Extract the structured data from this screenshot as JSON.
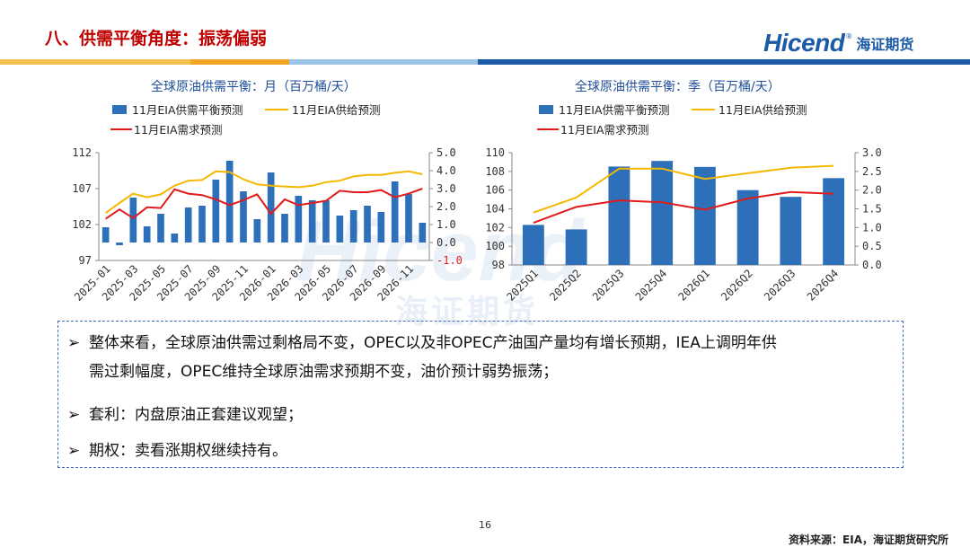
{
  "slide": {
    "title": "八、供需平衡角度：振荡偏弱",
    "logo_en": "Hicend",
    "logo_reg": "®",
    "logo_cn": "海证期货",
    "watermark_en": "Hicend",
    "watermark_cn": "海证期货",
    "page_number": "16",
    "source": "资料来源：EIA，海证期货研究所",
    "colors": {
      "bar": "#2e6fba",
      "supply_line": "#f5b800",
      "demand_line": "#e11b1b",
      "title": "#c00000",
      "accent_blue": "#1b5aa6"
    }
  },
  "bullets": [
    {
      "marker": "➢",
      "text_line1": "整体来看，全球原油供需过剩格局不变，OPEC以及非OPEC产油国产量均有增长预期，IEA上调明年供",
      "text_line2": "需过剩幅度，OPEC维持全球原油需求预期不变，油价预计弱势振荡；"
    },
    {
      "marker": "➢",
      "text_line1": "套利：内盘原油正套建议观望；"
    },
    {
      "marker": "➢",
      "text_line1": "期权：卖看涨期权继续持有。"
    }
  ],
  "chart_data": [
    {
      "type": "bar",
      "title": "全球原油供需平衡：月（百万桶/天）",
      "legend": {
        "bar": "11月EIA供需平衡预测",
        "line1": "11月EIA供给预测",
        "line2": "11月EIA需求预测",
        "position": "top"
      },
      "categories": [
        "2025-01",
        "2025-02",
        "2025-03",
        "2025-04",
        "2025-05",
        "2025-06",
        "2025-07",
        "2025-08",
        "2025-09",
        "2025-10",
        "2025-11",
        "2025-12",
        "2026-01",
        "2026-02",
        "2026-03",
        "2026-04",
        "2026-05",
        "2026-06",
        "2026-07",
        "2026-08",
        "2026-09",
        "2026-10",
        "2026-11",
        "2026-12"
      ],
      "tick_labels": [
        "2025-01",
        "2025-03",
        "2025-05",
        "2025-07",
        "2025-09",
        "2025-11",
        "2026-01",
        "2026-03",
        "2026-05",
        "2026-07",
        "2026-09",
        "2026-11"
      ],
      "left_axis": {
        "ylim": [
          97,
          112
        ],
        "ticks": [
          "112",
          "107",
          "102",
          "97"
        ]
      },
      "right_axis": {
        "ylim": [
          -1.0,
          5.0
        ],
        "ticks": [
          "5.0",
          "4.0",
          "3.0",
          "2.0",
          "1.0",
          "0.0",
          "-1.0"
        ]
      },
      "series": [
        {
          "name": "11月EIA供需平衡预测",
          "axis": "right",
          "type": "bar",
          "values": [
            0.85,
            -0.15,
            2.5,
            0.9,
            1.6,
            0.5,
            1.95,
            2.05,
            3.5,
            4.55,
            2.85,
            1.3,
            3.9,
            1.6,
            2.6,
            2.35,
            2.35,
            1.5,
            1.8,
            2.05,
            1.7,
            3.4,
            2.7,
            1.1
          ]
        },
        {
          "name": "11月EIA供给预测",
          "axis": "left",
          "values": [
            103.6,
            105.0,
            106.3,
            105.8,
            106.2,
            107.4,
            108.1,
            108.2,
            109.4,
            109.3,
            108.3,
            107.6,
            107.4,
            107.3,
            107.2,
            107.4,
            107.9,
            108.1,
            108.7,
            108.9,
            108.9,
            109.2,
            109.4,
            109.0
          ]
        },
        {
          "name": "11月EIA需求预测",
          "axis": "left",
          "values": [
            102.8,
            104.1,
            102.9,
            104.4,
            104.3,
            106.9,
            106.3,
            106.1,
            105.5,
            104.7,
            105.4,
            106.2,
            103.5,
            105.5,
            104.7,
            105.0,
            105.3,
            106.7,
            106.5,
            106.5,
            106.8,
            105.8,
            106.3,
            107.0
          ]
        }
      ]
    },
    {
      "type": "bar",
      "title": "全球原油供需平衡：季（百万桶/天）",
      "legend": {
        "bar": "11月EIA供需平衡预测",
        "line1": "11月EIA供给预测",
        "line2": "11月EIA需求预测",
        "position": "top"
      },
      "categories": [
        "2025Q1",
        "2025Q2",
        "2025Q3",
        "2025Q4",
        "2026Q1",
        "2026Q2",
        "2026Q3",
        "2026Q4"
      ],
      "tick_labels": [
        "2025Q1",
        "2025Q2",
        "2025Q3",
        "2025Q4",
        "2026Q1",
        "2026Q2",
        "2026Q3",
        "2026Q4"
      ],
      "left_axis": {
        "ylim": [
          98,
          110
        ],
        "ticks": [
          "110",
          "108",
          "106",
          "104",
          "102",
          "100",
          "98"
        ]
      },
      "right_axis": {
        "ylim": [
          0.0,
          3.0
        ],
        "ticks": [
          "3.0",
          "2.5",
          "2.0",
          "1.5",
          "1.0",
          "0.5",
          "0.0"
        ]
      },
      "series": [
        {
          "name": "11月EIA供需平衡预测",
          "axis": "right",
          "type": "bar",
          "values": [
            1.07,
            0.95,
            2.63,
            2.78,
            2.62,
            2.0,
            1.82,
            2.32
          ]
        },
        {
          "name": "11月EIA供给预测",
          "axis": "left",
          "values": [
            103.6,
            105.2,
            108.3,
            108.3,
            107.2,
            107.8,
            108.4,
            108.6
          ]
        },
        {
          "name": "11月EIA需求预测",
          "axis": "left",
          "values": [
            102.5,
            104.2,
            104.9,
            104.7,
            103.9,
            105.1,
            105.8,
            105.6
          ]
        }
      ]
    }
  ]
}
